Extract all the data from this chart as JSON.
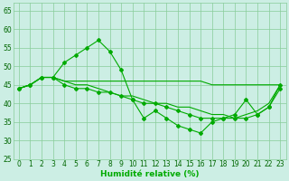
{
  "x": [
    0,
    1,
    2,
    3,
    4,
    5,
    6,
    7,
    8,
    9,
    10,
    11,
    12,
    13,
    14,
    15,
    16,
    17,
    18,
    19,
    20,
    21,
    22,
    23
  ],
  "line_jagged": [
    44,
    45,
    47,
    47,
    51,
    53,
    55,
    57,
    54,
    49,
    41,
    36,
    38,
    36,
    34,
    33,
    32,
    35,
    36,
    37,
    41,
    37,
    39,
    45
  ],
  "line_flat": [
    44,
    45,
    47,
    47,
    46,
    46,
    46,
    46,
    46,
    46,
    46,
    46,
    46,
    46,
    46,
    46,
    46,
    45,
    45,
    45,
    45,
    45,
    45,
    45
  ],
  "line_mid1": [
    44,
    45,
    47,
    47,
    46,
    45,
    45,
    44,
    43,
    42,
    42,
    41,
    40,
    40,
    39,
    39,
    38,
    37,
    37,
    36,
    37,
    38,
    40,
    45
  ],
  "line_mid2": [
    44,
    45,
    47,
    47,
    45,
    44,
    44,
    43,
    43,
    42,
    41,
    40,
    40,
    39,
    38,
    37,
    36,
    36,
    36,
    36,
    36,
    37,
    39,
    44
  ],
  "line_color": "#00aa00",
  "bg_color": "#cceee4",
  "grid_color": "#88cc99",
  "xlabel": "Humidité relative (%)",
  "ylim": [
    25,
    67
  ],
  "xlim": [
    -0.5,
    23.5
  ],
  "yticks": [
    25,
    30,
    35,
    40,
    45,
    50,
    55,
    60,
    65
  ],
  "xticks": [
    0,
    1,
    2,
    3,
    4,
    5,
    6,
    7,
    8,
    9,
    10,
    11,
    12,
    13,
    14,
    15,
    16,
    17,
    18,
    19,
    20,
    21,
    22,
    23
  ],
  "tick_fontsize": 5.5,
  "xlabel_fontsize": 6.5,
  "marker": "D",
  "markersize": 2.0,
  "linewidth": 0.8
}
